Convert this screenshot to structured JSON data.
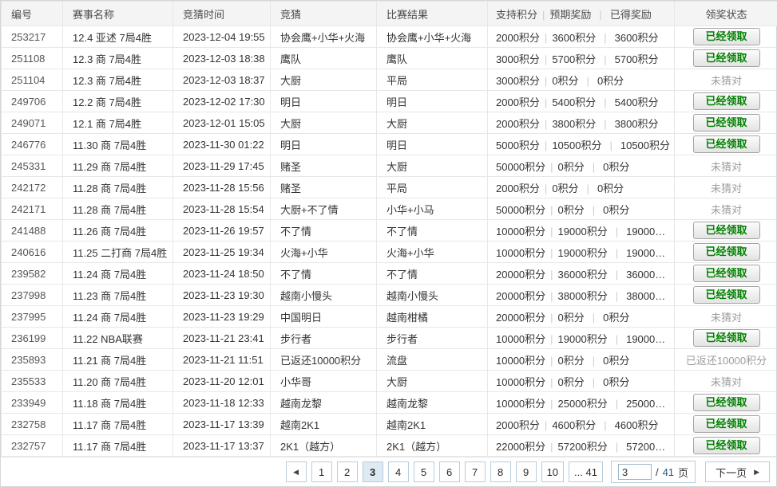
{
  "table": {
    "headers": {
      "id": "编号",
      "event": "赛事名称",
      "time": "竞猜时间",
      "bet": "竞猜",
      "result": "比赛结果",
      "support": "支持积分",
      "expected": "预期奖励",
      "received": "已得奖励",
      "status": "领奖状态"
    },
    "points_separator": "|",
    "rows": [
      {
        "id": "253217",
        "event": "12.4 亚述 7局4胜",
        "time": "2023-12-04 19:55",
        "bet": "协会鹰+小华+火海",
        "result": "协会鹰+小华+火海",
        "support": "2000积分",
        "expected": "3600积分",
        "received": "3600积分",
        "status": {
          "kind": "button",
          "label": "已经领取"
        }
      },
      {
        "id": "251108",
        "event": "12.3 商 7局4胜",
        "time": "2023-12-03 18:38",
        "bet": "鹰队",
        "result": "鹰队",
        "support": "3000积分",
        "expected": "5700积分",
        "received": "5700积分",
        "status": {
          "kind": "button",
          "label": "已经领取"
        }
      },
      {
        "id": "251104",
        "event": "12.3 商 7局4胜",
        "time": "2023-12-03 18:37",
        "bet": "大厨",
        "result": "平局",
        "support": "3000积分",
        "expected": "0积分",
        "received": "0积分",
        "status": {
          "kind": "text",
          "label": "未猜对"
        }
      },
      {
        "id": "249706",
        "event": "12.2 商 7局4胜",
        "time": "2023-12-02 17:30",
        "bet": "明日",
        "result": "明日",
        "support": "2000积分",
        "expected": "5400积分",
        "received": "5400积分",
        "status": {
          "kind": "button",
          "label": "已经领取"
        }
      },
      {
        "id": "249071",
        "event": "12.1 商 7局4胜",
        "time": "2023-12-01 15:05",
        "bet": "大厨",
        "result": "大厨",
        "support": "2000积分",
        "expected": "3800积分",
        "received": "3800积分",
        "status": {
          "kind": "button",
          "label": "已经领取"
        }
      },
      {
        "id": "246776",
        "event": "11.30 商 7局4胜",
        "time": "2023-11-30 01:22",
        "bet": "明日",
        "result": "明日",
        "support": "5000积分",
        "expected": "10500积分",
        "received": "10500积分",
        "status": {
          "kind": "button",
          "label": "已经领取"
        }
      },
      {
        "id": "245331",
        "event": "11.29 商 7局4胜",
        "time": "2023-11-29 17:45",
        "bet": "赌圣",
        "result": "大厨",
        "support": "50000积分",
        "expected": "0积分",
        "received": "0积分",
        "status": {
          "kind": "text",
          "label": "未猜对"
        }
      },
      {
        "id": "242172",
        "event": "11.28 商 7局4胜",
        "time": "2023-11-28 15:56",
        "bet": "赌圣",
        "result": "平局",
        "support": "2000积分",
        "expected": "0积分",
        "received": "0积分",
        "status": {
          "kind": "text",
          "label": "未猜对"
        }
      },
      {
        "id": "242171",
        "event": "11.28 商 7局4胜",
        "time": "2023-11-28 15:54",
        "bet": "大厨+不了情",
        "result": "小华+小马",
        "support": "50000积分",
        "expected": "0积分",
        "received": "0积分",
        "status": {
          "kind": "text",
          "label": "未猜对"
        }
      },
      {
        "id": "241488",
        "event": "11.26 商 7局4胜",
        "time": "2023-11-26 19:57",
        "bet": "不了情",
        "result": "不了情",
        "support": "10000积分",
        "expected": "19000积分",
        "received": "19000积分",
        "status": {
          "kind": "button",
          "label": "已经领取"
        }
      },
      {
        "id": "240616",
        "event": "11.25 二打商 7局4胜",
        "time": "2023-11-25 19:34",
        "bet": "火海+小华",
        "result": "火海+小华",
        "support": "10000积分",
        "expected": "19000积分",
        "received": "19000积分",
        "status": {
          "kind": "button",
          "label": "已经领取"
        }
      },
      {
        "id": "239582",
        "event": "11.24 商 7局4胜",
        "time": "2023-11-24 18:50",
        "bet": "不了情",
        "result": "不了情",
        "support": "20000积分",
        "expected": "36000积分",
        "received": "36000积分",
        "status": {
          "kind": "button",
          "label": "已经领取"
        }
      },
      {
        "id": "237998",
        "event": "11.23 商 7局4胜",
        "time": "2023-11-23 19:30",
        "bet": "越南小慢头",
        "result": "越南小慢头",
        "support": "20000积分",
        "expected": "38000积分",
        "received": "38000积分",
        "status": {
          "kind": "button",
          "label": "已经领取"
        }
      },
      {
        "id": "237995",
        "event": "11.24 商 7局4胜",
        "time": "2023-11-23 19:29",
        "bet": "中国明日",
        "result": "越南柑橘",
        "support": "20000积分",
        "expected": "0积分",
        "received": "0积分",
        "status": {
          "kind": "text",
          "label": "未猜对"
        }
      },
      {
        "id": "236199",
        "event": "11.22 NBA联赛",
        "time": "2023-11-21 23:41",
        "bet": "步行者",
        "result": "步行者",
        "support": "10000积分",
        "expected": "19000积分",
        "received": "19000积分",
        "status": {
          "kind": "button",
          "label": "已经领取"
        }
      },
      {
        "id": "235893",
        "event": "11.21 商 7局4胜",
        "time": "2023-11-21 11:51",
        "bet": "已返还10000积分",
        "result": "流盘",
        "support": "10000积分",
        "expected": "0积分",
        "received": "0积分",
        "status": {
          "kind": "text",
          "label": "已返还10000积分"
        }
      },
      {
        "id": "235533",
        "event": "11.20 商 7局4胜",
        "time": "2023-11-20 12:01",
        "bet": "小华哥",
        "result": "大厨",
        "support": "10000积分",
        "expected": "0积分",
        "received": "0积分",
        "status": {
          "kind": "text",
          "label": "未猜对"
        }
      },
      {
        "id": "233949",
        "event": "11.18 商 7局4胜",
        "time": "2023-11-18 12:33",
        "bet": "越南龙黎",
        "result": "越南龙黎",
        "support": "10000积分",
        "expected": "25000积分",
        "received": "25000积分",
        "status": {
          "kind": "button",
          "label": "已经领取"
        }
      },
      {
        "id": "232758",
        "event": "11.17 商 7局4胜",
        "time": "2023-11-17 13:39",
        "bet": "越南2K1",
        "result": "越南2K1",
        "support": "2000积分",
        "expected": "4600积分",
        "received": "4600积分",
        "status": {
          "kind": "button",
          "label": "已经领取"
        }
      },
      {
        "id": "232757",
        "event": "11.17 商 7局4胜",
        "time": "2023-11-17 13:37",
        "bet": "2K1（越方）",
        "result": "2K1（越方）",
        "support": "22000积分",
        "expected": "57200积分",
        "received": "57200积分",
        "status": {
          "kind": "button",
          "label": "已经领取"
        }
      }
    ]
  },
  "pagination": {
    "prev_icon": "◀",
    "next_icon": "▶",
    "next_label": "下一页",
    "pages": [
      "1",
      "2",
      "3",
      "4",
      "5",
      "6",
      "7",
      "8",
      "9",
      "10",
      "... 41"
    ],
    "current_page": "3",
    "jump_input_value": "3",
    "slash": "/",
    "total_pages": "41",
    "page_unit": "页"
  },
  "colors": {
    "claimed_green": "#008000",
    "muted_gray": "#9c9c9c",
    "pagination_border": "#b7cdde",
    "current_page_bg": "#dde9f3",
    "header_bg": "#f4f4f4"
  }
}
